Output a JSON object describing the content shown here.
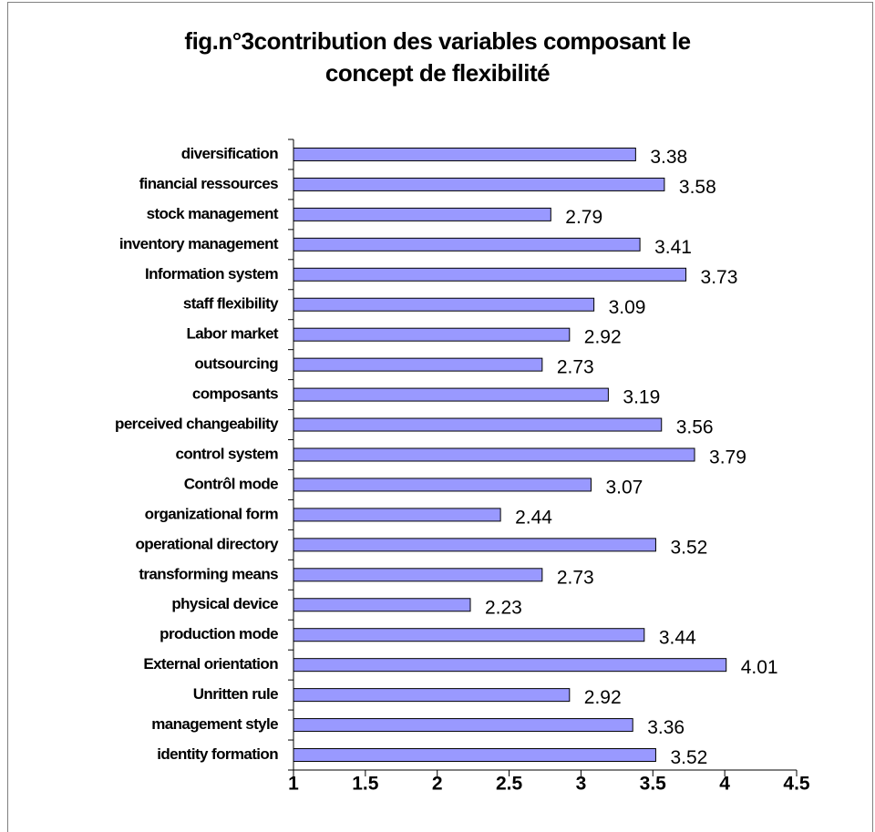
{
  "chart_data": {
    "type": "bar",
    "title": "fig.n°3contribution des variables composant le concept de flexibilité",
    "categories": [
      "diversification",
      "financial ressources",
      "stock management",
      "inventory management",
      "Information system",
      "staff flexibility",
      "Labor market",
      "outsourcing",
      "composants",
      "perceived changeability",
      "control system",
      "Contrôl mode",
      "organizational form",
      "operational directory",
      "transforming means",
      "physical device",
      "production mode",
      "External orientation",
      "Unritten rule",
      "management style",
      "identity formation"
    ],
    "values": [
      3.38,
      3.58,
      2.79,
      3.41,
      3.73,
      3.09,
      2.92,
      2.73,
      3.19,
      3.56,
      3.79,
      3.07,
      2.44,
      3.52,
      2.73,
      2.23,
      3.44,
      4.01,
      2.92,
      3.36,
      3.52
    ],
    "color": "#9999ff",
    "xlim": [
      1,
      4.5
    ],
    "xticks": [
      1,
      1.5,
      2,
      2.5,
      3,
      3.5,
      4,
      4.5
    ]
  }
}
